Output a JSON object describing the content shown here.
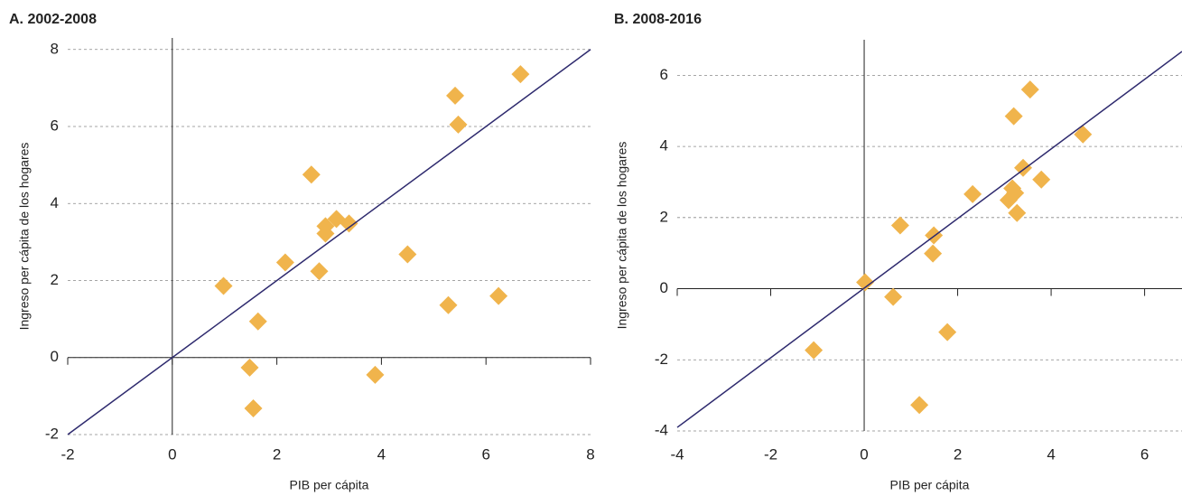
{
  "chart_data": [
    {
      "type": "scatter",
      "title": "A. 2002-2008",
      "xlabel": "PIB per cápita",
      "ylabel": "Ingreso per cápita de los hogares",
      "x": [
        0.98,
        1.64,
        1.48,
        1.55,
        2.16,
        2.81,
        2.66,
        2.93,
        2.93,
        3.14,
        3.38,
        3.88,
        4.5,
        5.28,
        5.41,
        5.47,
        6.24,
        6.66
      ],
      "y": [
        1.86,
        0.94,
        -0.26,
        -1.32,
        2.47,
        2.24,
        4.75,
        3.41,
        3.22,
        3.6,
        3.48,
        -0.45,
        2.68,
        1.36,
        6.8,
        6.05,
        1.6,
        7.36
      ],
      "color": "#f0b44c",
      "line": {
        "x": [
          -2,
          8
        ],
        "y": [
          -2,
          8
        ],
        "color": "#2e2a6e"
      },
      "xlim": [
        -2,
        8
      ],
      "ylim": [
        -2,
        8.3
      ],
      "xticks": [
        -2,
        0,
        2,
        4,
        6,
        8
      ],
      "yticks": [
        -2,
        0,
        2,
        4,
        6,
        8
      ],
      "grid": true
    },
    {
      "type": "scatter",
      "title": "B. 2008-2016",
      "xlabel": "PIB per cápita",
      "ylabel": "Ingreso per cápita de los hogares",
      "x": [
        -1.08,
        0.02,
        0.62,
        0.77,
        1.49,
        1.47,
        1.78,
        1.18,
        2.32,
        3.09,
        3.17,
        3.23,
        3.27,
        3.2,
        3.55,
        3.4,
        3.79,
        4.68
      ],
      "y": [
        -1.73,
        0.18,
        -0.23,
        1.78,
        1.5,
        0.99,
        -1.22,
        -3.27,
        2.66,
        2.49,
        2.82,
        2.69,
        2.13,
        4.85,
        5.6,
        3.4,
        3.07,
        4.34
      ],
      "color": "#f0b44c",
      "line": {
        "x": [
          -4,
          6.8
        ],
        "y": [
          -3.9,
          6.67
        ],
        "color": "#2e2a6e"
      },
      "xlim": [
        -4,
        6.8
      ],
      "ylim": [
        -4,
        7
      ],
      "xticks": [
        -4,
        -2,
        0,
        2,
        4,
        6
      ],
      "yticks": [
        -4,
        -2,
        0,
        2,
        4,
        6
      ],
      "grid": true
    }
  ]
}
